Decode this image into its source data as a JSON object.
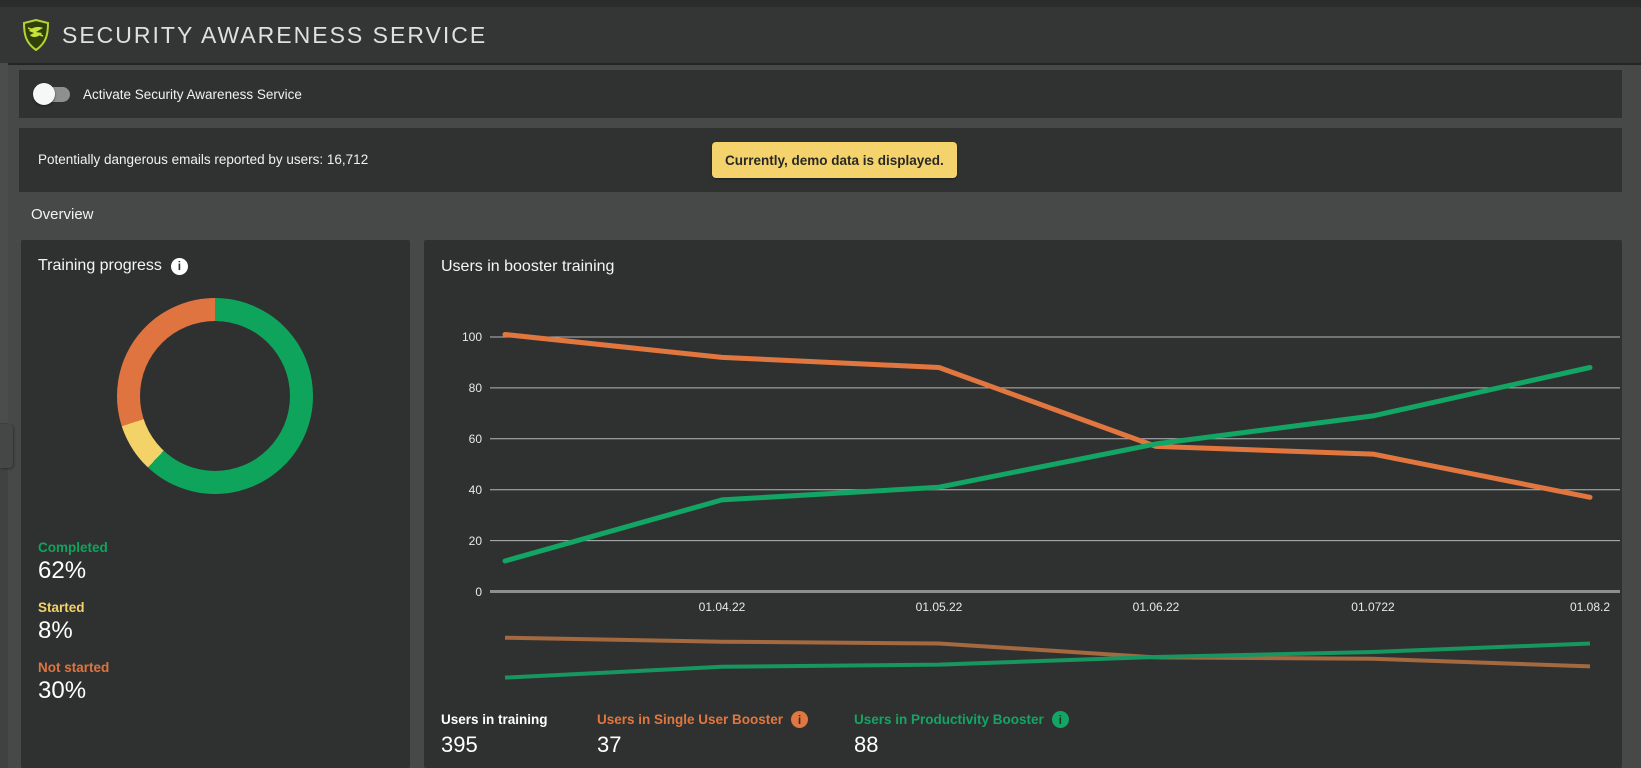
{
  "header": {
    "title": "SECURITY AWARENESS SERVICE",
    "logo_color": "#b6d333"
  },
  "activation": {
    "label": "Activate Security Awareness Service",
    "state": "off"
  },
  "info_bar": {
    "message": "Potentially dangerous emails reported by users: 16,712",
    "badge": "Currently, demo data is displayed.",
    "badge_bg": "#f5d36c"
  },
  "section_title": "Overview",
  "cards": {
    "training": {
      "title": "Training progress",
      "legend": [
        {
          "label": "Completed",
          "value": "62%",
          "color": "#0ea45c"
        },
        {
          "label": "Started",
          "value": "8%",
          "color": "#f3d368"
        },
        {
          "label": "Not started",
          "value": "30%",
          "color": "#df7440"
        }
      ]
    },
    "booster": {
      "title": "Users in booster training",
      "stats": [
        {
          "label": "Users in training",
          "value": "395",
          "color": "#ffffff",
          "has_info": false
        },
        {
          "label": "Users in Single User Booster",
          "value": "37",
          "color": "#e1773f",
          "has_info": true
        },
        {
          "label": "Users in Productivity Booster",
          "value": "88",
          "color": "#12a564",
          "has_info": true
        }
      ]
    }
  },
  "chart_data": [
    {
      "type": "pie",
      "subtype": "donut",
      "title": "Training progress",
      "labels": [
        "Completed",
        "Started",
        "Not started"
      ],
      "values": [
        62,
        8,
        30
      ],
      "unit": "%",
      "colors": [
        "#0ea45c",
        "#f3d368",
        "#df7440"
      ],
      "start_angle_deg": 0,
      "direction": "clockwise",
      "legend_position": "bottom-left"
    },
    {
      "type": "line",
      "title": "Users in booster training",
      "x": [
        "",
        "01.04.22",
        "01.05.22",
        "01.06.22",
        "01.0722",
        "01.08.2"
      ],
      "series": [
        {
          "name": "Users in Single User Booster",
          "color": "#e1773f",
          "nav_color": "#a5693f",
          "values": [
            101,
            92,
            88,
            57,
            54,
            37
          ]
        },
        {
          "name": "Users in Productivity Booster",
          "color": "#12a564",
          "nav_color": "#17965f",
          "values": [
            12,
            36,
            41,
            58,
            69,
            88
          ]
        }
      ],
      "ylim": [
        0,
        100
      ],
      "yticks": [
        0,
        20,
        40,
        60,
        80,
        100
      ],
      "grid": true,
      "gridline_color": "#d8d8d8",
      "baseline_color": "#8d8f8f",
      "navigator": true,
      "legend_position": "none"
    }
  ]
}
